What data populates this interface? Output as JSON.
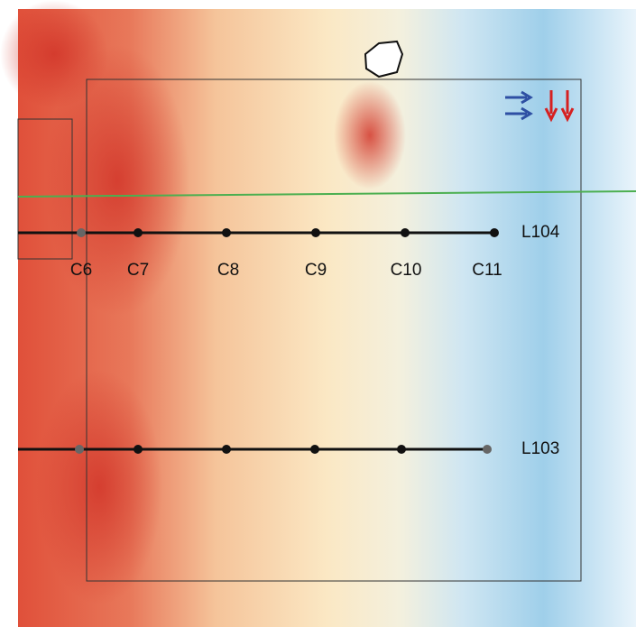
{
  "profiles": [
    {
      "label": "L104",
      "stations": [
        "C6",
        "C7",
        "C8",
        "C9",
        "C10",
        "C11"
      ]
    },
    {
      "label": "L103"
    }
  ]
}
